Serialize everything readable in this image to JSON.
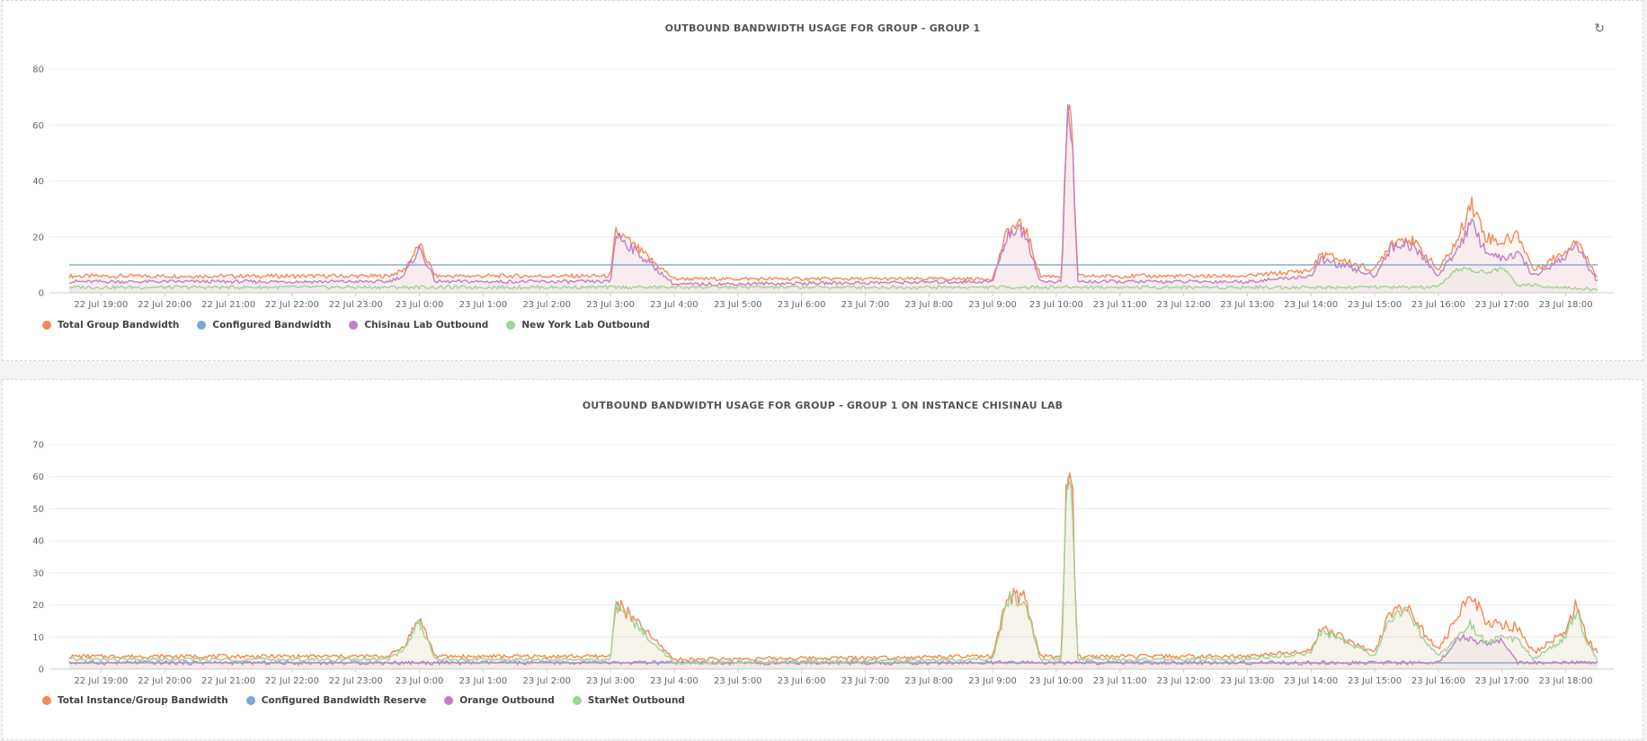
{
  "colors": {
    "orange": "#f28a55",
    "blue": "#7ea6d8",
    "purple": "#c17fc4",
    "green": "#9fd398"
  },
  "toolbar": {
    "refresh_icon": "refresh-icon"
  },
  "panels": [
    {
      "title": "OUTBOUND BANDWIDTH USAGE FOR GROUP - GROUP 1",
      "legend": [
        "Total Group Bandwidth",
        "Configured Bandwidth",
        "Chisinau Lab Outbound",
        "New York Lab Outbound"
      ]
    },
    {
      "title": "OUTBOUND BANDWIDTH USAGE FOR GROUP - GROUP 1 ON INSTANCE CHISINAU LAB",
      "legend": [
        "Total Instance/Group Bandwidth",
        "Configured Bandwidth Reserve",
        "Orange Outbound",
        "StarNet Outbound"
      ]
    }
  ],
  "chart_data": [
    {
      "type": "area",
      "title": "OUTBOUND BANDWIDTH USAGE FOR GROUP - GROUP 1",
      "x_ticks": [
        "22 Jul 19:00",
        "22 Jul 20:00",
        "22 Jul 21:00",
        "22 Jul 22:00",
        "22 Jul 23:00",
        "23 Jul 0:00",
        "23 Jul 1:00",
        "23 Jul 2:00",
        "23 Jul 3:00",
        "23 Jul 4:00",
        "23 Jul 5:00",
        "23 Jul 6:00",
        "23 Jul 7:00",
        "23 Jul 8:00",
        "23 Jul 9:00",
        "23 Jul 10:00",
        "23 Jul 11:00",
        "23 Jul 12:00",
        "23 Jul 13:00",
        "23 Jul 14:00",
        "23 Jul 15:00",
        "23 Jul 16:00",
        "23 Jul 17:00",
        "23 Jul 18:00"
      ],
      "x_range": [
        "22 Jul 18:30",
        "23 Jul 18:30"
      ],
      "y_ticks": [
        0,
        20,
        40,
        60,
        80
      ],
      "ylim": [
        0,
        80
      ],
      "grid": true,
      "legend_position": "bottom-left",
      "series": [
        {
          "name": "Total Group Bandwidth",
          "color": "#f28a55",
          "x": [
            "22 Jul 18:30",
            "22 Jul 23:30",
            "22 Jul 23:45",
            "23 Jul 0:00",
            "23 Jul 0:15",
            "23 Jul 3:00",
            "23 Jul 3:05",
            "23 Jul 4:00",
            "23 Jul 9:00",
            "23 Jul 9:15",
            "23 Jul 9:30",
            "23 Jul 9:45",
            "23 Jul 10:05",
            "23 Jul 10:10",
            "23 Jul 10:15",
            "23 Jul 10:20",
            "23 Jul 13:00",
            "23 Jul 14:00",
            "23 Jul 14:10",
            "23 Jul 15:00",
            "23 Jul 15:15",
            "23 Jul 15:30",
            "23 Jul 15:45",
            "23 Jul 16:00",
            "23 Jul 16:20",
            "23 Jul 16:30",
            "23 Jul 16:45",
            "23 Jul 17:00",
            "23 Jul 17:15",
            "23 Jul 17:30",
            "23 Jul 18:00",
            "23 Jul 18:10",
            "23 Jul 18:20",
            "23 Jul 18:30"
          ],
          "y": [
            6,
            6,
            8,
            17,
            6,
            6,
            22,
            5,
            5,
            23,
            24,
            6,
            6,
            62,
            58,
            6,
            6,
            8,
            14,
            8,
            18,
            20,
            15,
            8,
            20,
            33,
            20,
            18,
            21,
            8,
            15,
            20,
            12,
            6
          ]
        },
        {
          "name": "Configured Bandwidth",
          "color": "#7ea6d8",
          "x": [
            "22 Jul 18:30",
            "23 Jul 18:30"
          ],
          "y": [
            10,
            10
          ]
        },
        {
          "name": "Chisinau Lab Outbound",
          "color": "#c17fc4",
          "x": [
            "22 Jul 18:30",
            "22 Jul 23:30",
            "22 Jul 23:45",
            "23 Jul 0:00",
            "23 Jul 0:15",
            "23 Jul 3:00",
            "23 Jul 3:05",
            "23 Jul 4:00",
            "23 Jul 9:00",
            "23 Jul 9:15",
            "23 Jul 9:30",
            "23 Jul 9:45",
            "23 Jul 10:05",
            "23 Jul 10:10",
            "23 Jul 10:15",
            "23 Jul 10:20",
            "23 Jul 13:00",
            "23 Jul 14:00",
            "23 Jul 14:10",
            "23 Jul 15:00",
            "23 Jul 15:15",
            "23 Jul 15:30",
            "23 Jul 15:45",
            "23 Jul 16:00",
            "23 Jul 16:20",
            "23 Jul 16:30",
            "23 Jul 16:45",
            "23 Jul 17:00",
            "23 Jul 17:15",
            "23 Jul 17:30",
            "23 Jul 18:00",
            "23 Jul 18:10",
            "23 Jul 18:20",
            "23 Jul 18:30"
          ],
          "y": [
            4,
            4,
            6,
            16,
            4,
            4,
            21,
            3,
            4,
            22,
            22,
            4,
            4,
            61,
            57,
            4,
            4,
            6,
            12,
            6,
            16,
            18,
            13,
            6,
            17,
            25,
            15,
            12,
            14,
            6,
            13,
            18,
            10,
            4
          ]
        },
        {
          "name": "New York Lab Outbound",
          "color": "#9fd398",
          "x": [
            "22 Jul 18:30",
            "23 Jul 15:00",
            "23 Jul 16:00",
            "23 Jul 16:20",
            "23 Jul 16:45",
            "23 Jul 17:00",
            "23 Jul 17:15",
            "23 Jul 18:00",
            "23 Jul 18:30"
          ],
          "y": [
            2,
            2,
            2,
            9,
            7,
            9,
            3,
            2,
            1
          ]
        }
      ]
    },
    {
      "type": "area",
      "title": "OUTBOUND BANDWIDTH USAGE FOR GROUP - GROUP 1 ON INSTANCE CHISINAU LAB",
      "x_ticks": [
        "22 Jul 19:00",
        "22 Jul 20:00",
        "22 Jul 21:00",
        "22 Jul 22:00",
        "22 Jul 23:00",
        "23 Jul 0:00",
        "23 Jul 1:00",
        "23 Jul 2:00",
        "23 Jul 3:00",
        "23 Jul 4:00",
        "23 Jul 5:00",
        "23 Jul 6:00",
        "23 Jul 7:00",
        "23 Jul 8:00",
        "23 Jul 9:00",
        "23 Jul 10:00",
        "23 Jul 11:00",
        "23 Jul 12:00",
        "23 Jul 13:00",
        "23 Jul 14:00",
        "23 Jul 15:00",
        "23 Jul 16:00",
        "23 Jul 17:00",
        "23 Jul 18:00"
      ],
      "x_range": [
        "22 Jul 18:30",
        "23 Jul 18:30"
      ],
      "y_ticks": [
        0,
        10,
        20,
        30,
        40,
        50,
        60,
        70
      ],
      "ylim": [
        0,
        70
      ],
      "grid": true,
      "legend_position": "bottom-left",
      "series": [
        {
          "name": "Total Instance/Group Bandwidth",
          "color": "#f28a55",
          "x": [
            "22 Jul 18:30",
            "22 Jul 23:30",
            "22 Jul 23:45",
            "23 Jul 0:00",
            "23 Jul 0:15",
            "23 Jul 3:00",
            "23 Jul 3:05",
            "23 Jul 4:00",
            "23 Jul 9:00",
            "23 Jul 9:15",
            "23 Jul 9:30",
            "23 Jul 9:45",
            "23 Jul 10:05",
            "23 Jul 10:10",
            "23 Jul 10:15",
            "23 Jul 10:20",
            "23 Jul 13:00",
            "23 Jul 14:00",
            "23 Jul 14:10",
            "23 Jul 15:00",
            "23 Jul 15:15",
            "23 Jul 15:30",
            "23 Jul 15:45",
            "23 Jul 16:00",
            "23 Jul 16:20",
            "23 Jul 16:30",
            "23 Jul 16:45",
            "23 Jul 17:00",
            "23 Jul 17:15",
            "23 Jul 17:30",
            "23 Jul 18:00",
            "23 Jul 18:10",
            "23 Jul 18:20",
            "23 Jul 18:30"
          ],
          "y": [
            4,
            4,
            7,
            16,
            4,
            4,
            21,
            3,
            4,
            23,
            22,
            4,
            4,
            61,
            57,
            4,
            4,
            6,
            13,
            5,
            18,
            20,
            12,
            6,
            17,
            25,
            14,
            14,
            13,
            5,
            12,
            20,
            10,
            5
          ]
        },
        {
          "name": "Configured Bandwidth Reserve",
          "color": "#7ea6d8",
          "x": [
            "22 Jul 18:30",
            "23 Jul 18:30"
          ],
          "y": [
            2,
            2
          ]
        },
        {
          "name": "Orange Outbound",
          "color": "#c17fc4",
          "x": [
            "22 Jul 18:30",
            "23 Jul 16:00",
            "23 Jul 16:20",
            "23 Jul 16:45",
            "23 Jul 17:00",
            "23 Jul 17:15",
            "23 Jul 18:30"
          ],
          "y": [
            2,
            2,
            10,
            8,
            9,
            2,
            2
          ]
        },
        {
          "name": "StarNet Outbound",
          "color": "#9fd398",
          "x": [
            "22 Jul 18:30",
            "22 Jul 23:30",
            "22 Jul 23:45",
            "23 Jul 0:00",
            "23 Jul 0:15",
            "23 Jul 3:00",
            "23 Jul 3:05",
            "23 Jul 4:00",
            "23 Jul 9:00",
            "23 Jul 9:15",
            "23 Jul 9:30",
            "23 Jul 9:45",
            "23 Jul 10:05",
            "23 Jul 10:10",
            "23 Jul 10:15",
            "23 Jul 10:20",
            "23 Jul 13:00",
            "23 Jul 14:00",
            "23 Jul 14:10",
            "23 Jul 15:00",
            "23 Jul 15:15",
            "23 Jul 15:30",
            "23 Jul 15:45",
            "23 Jul 16:00",
            "23 Jul 16:20",
            "23 Jul 16:30",
            "23 Jul 16:45",
            "23 Jul 17:00",
            "23 Jul 17:15",
            "23 Jul 17:30",
            "23 Jul 18:00",
            "23 Jul 18:10",
            "23 Jul 18:20",
            "23 Jul 18:30"
          ],
          "y": [
            3,
            3,
            6,
            15,
            3,
            3,
            20,
            2,
            3,
            22,
            21,
            3,
            3,
            60,
            56,
            3,
            3,
            5,
            12,
            4,
            16,
            18,
            10,
            4,
            10,
            14,
            8,
            10,
            9,
            3,
            10,
            18,
            8,
            3
          ]
        }
      ]
    }
  ]
}
